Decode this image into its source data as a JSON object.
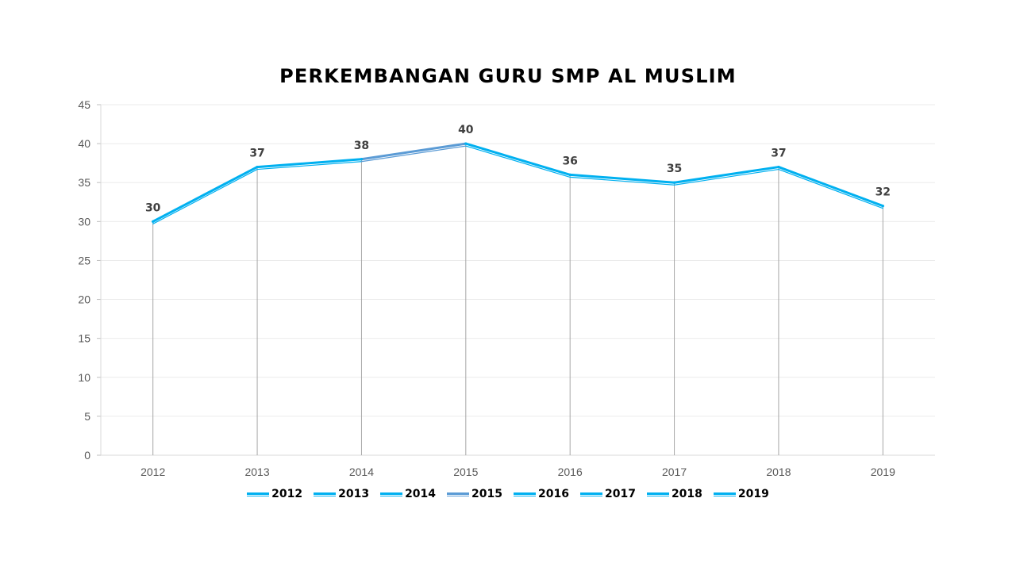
{
  "chart_data": {
    "type": "line",
    "title": "PERKEMBANGAN GURU SMP AL MUSLIM",
    "xlabel": "",
    "ylabel": "",
    "categories": [
      "2012",
      "2013",
      "2014",
      "2015",
      "2016",
      "2017",
      "2018",
      "2019"
    ],
    "values": [
      30,
      37,
      38,
      40,
      36,
      35,
      37,
      32
    ],
    "data_labels": [
      "30",
      "37",
      "38",
      "40",
      "36",
      "35",
      "37",
      "32"
    ],
    "ylim": [
      0,
      45
    ],
    "yticks": [
      "0",
      "5",
      "10",
      "15",
      "20",
      "25",
      "30",
      "35",
      "40",
      "45"
    ],
    "grid": true,
    "drop_lines": true,
    "legend_position": "bottom",
    "legend": [
      {
        "label": "2012",
        "color": "#00B0F0"
      },
      {
        "label": "2013",
        "color": "#00B0F0"
      },
      {
        "label": "2014",
        "color": "#00B0F0"
      },
      {
        "label": "2015",
        "color": "#5B9BD5"
      },
      {
        "label": "2016",
        "color": "#00B0F0"
      },
      {
        "label": "2017",
        "color": "#00B0F0"
      },
      {
        "label": "2018",
        "color": "#00B0F0"
      },
      {
        "label": "2019",
        "color": "#00B0F0"
      }
    ],
    "line_color": "#00B0F0",
    "highlight_segment_color": "#5B9BD5"
  }
}
